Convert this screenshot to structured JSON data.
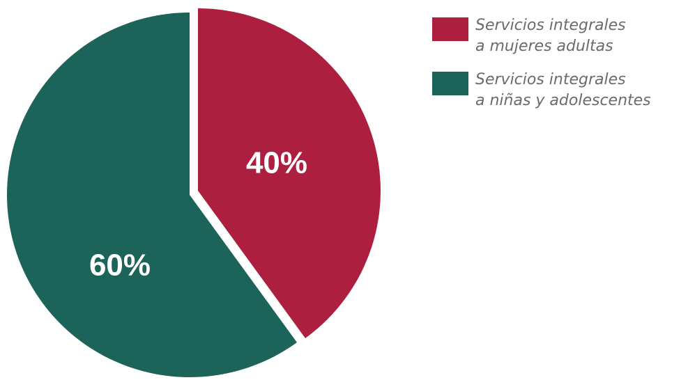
{
  "chart_data": {
    "type": "pie",
    "slices": [
      {
        "name": "Servicios integrales\na mujeres adultas",
        "value": 40,
        "label": "40%",
        "color": "#AC1F3E"
      },
      {
        "name": "Servicios integrales\na niñas y adolescentes",
        "value": 60,
        "label": "60%",
        "color": "#1C6359"
      }
    ],
    "legend_position": "top-right",
    "start_angle": "top, clockwise, first slice exploded outward"
  }
}
